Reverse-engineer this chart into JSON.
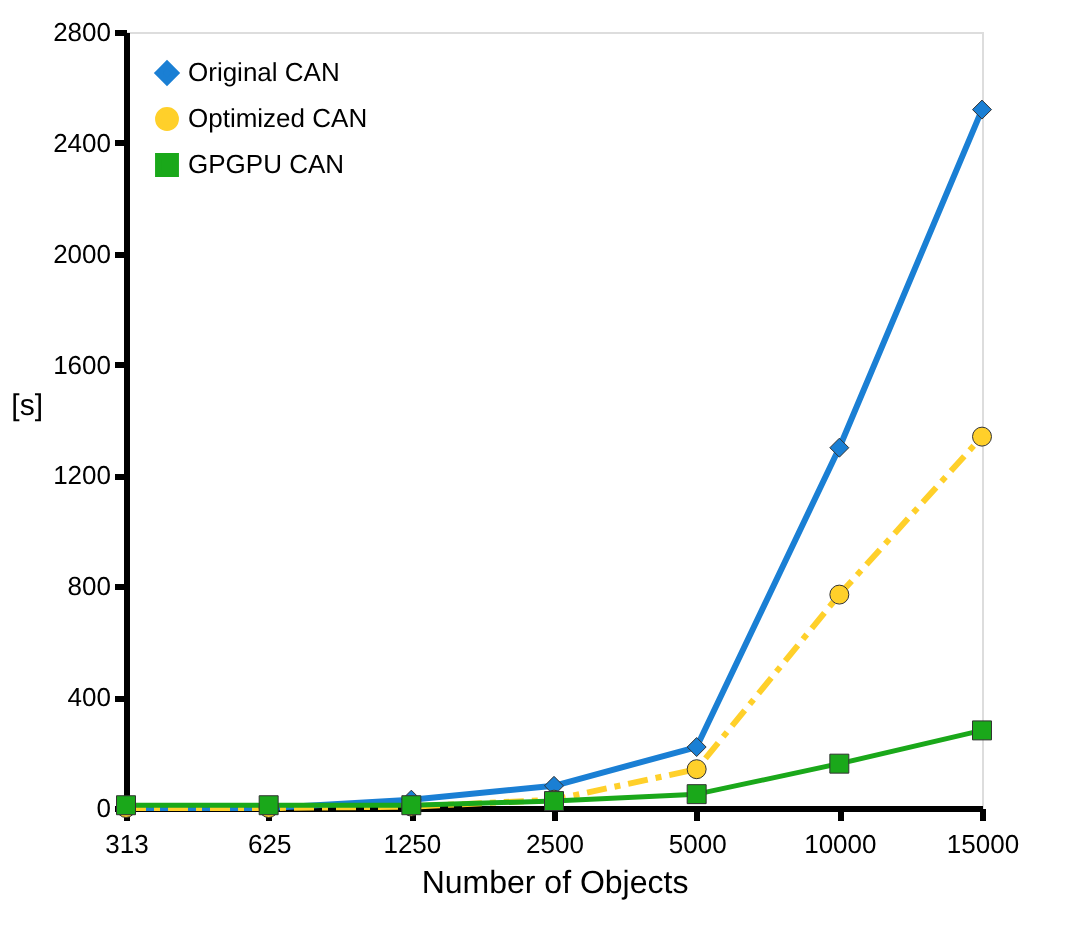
{
  "chart_data": {
    "type": "line",
    "xlabel": "Number of Objects",
    "ylabel": "[s]",
    "categories": [
      "313",
      "625",
      "1250",
      "2500",
      "5000",
      "10000",
      "15000"
    ],
    "ylim": [
      0,
      2800
    ],
    "yticks": [
      0,
      400,
      800,
      1200,
      1600,
      2000,
      2400,
      2800
    ],
    "grid": false,
    "legend": "top left",
    "series": [
      {
        "name": "Original CAN",
        "color": "#1a7fd4",
        "marker": "diamond",
        "line_style": "solid",
        "values": [
          0,
          0,
          30,
          80,
          220,
          1300,
          2520
        ]
      },
      {
        "name": "Optimized CAN",
        "color": "#ffd02a",
        "marker": "circle",
        "line_style": "dashed",
        "values": [
          0,
          0,
          5,
          30,
          140,
          770,
          1340
        ]
      },
      {
        "name": "GPGPU CAN",
        "color": "#1aa81a",
        "marker": "square",
        "line_style": "solid",
        "values": [
          10,
          10,
          10,
          25,
          50,
          160,
          280
        ]
      }
    ]
  }
}
